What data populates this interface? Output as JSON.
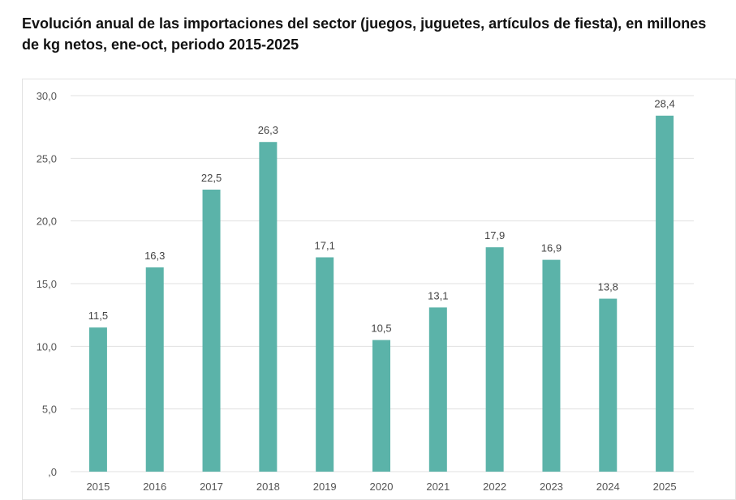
{
  "chart_data": {
    "type": "bar",
    "title": "Evolución anual de las importaciones del sector (juegos, juguetes, artículos de fiesta), en millones de kg netos, ene-oct, periodo 2015-2025",
    "categories": [
      "2015",
      "2016",
      "2017",
      "2018",
      "2019",
      "2020",
      "2021",
      "2022",
      "2023",
      "2024",
      "2025"
    ],
    "values": [
      11.5,
      16.3,
      22.5,
      26.3,
      17.1,
      10.5,
      13.1,
      17.9,
      16.9,
      13.8,
      28.4
    ],
    "data_labels": [
      "11,5",
      "16,3",
      "22,5",
      "26,3",
      "17,1",
      "10,5",
      "13,1",
      "17,9",
      "16,9",
      "13,8",
      "28,4"
    ],
    "yticks": [
      0,
      5,
      10,
      15,
      20,
      25,
      30
    ],
    "ytick_labels": [
      ",0",
      "5,0",
      "10,0",
      "15,0",
      "20,0",
      "25,0",
      "30,0"
    ],
    "ylim": [
      0,
      30
    ],
    "xlabel": "",
    "ylabel": "",
    "grid": "horizontal",
    "legend": "none",
    "bar_color": "#5bb3a9"
  }
}
